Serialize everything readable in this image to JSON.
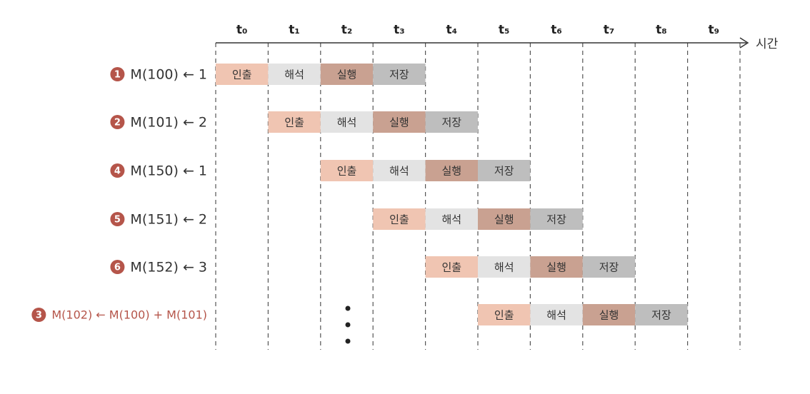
{
  "time_labels": [
    "t₀",
    "t₁",
    "t₂",
    "t₃",
    "t₄",
    "t₅",
    "t₆",
    "t₇",
    "t₈",
    "t₉"
  ],
  "axis_label": "시간",
  "stages": [
    "인출",
    "해석",
    "실행",
    "저장"
  ],
  "rows": [
    {
      "badge": "1",
      "label": "M(100) ← 1"
    },
    {
      "badge": "2",
      "label": "M(101) ← 2"
    },
    {
      "badge": "4",
      "label": "M(150) ← 1"
    },
    {
      "badge": "5",
      "label": "M(151) ← 2"
    },
    {
      "badge": "6",
      "label": "M(152) ← 3"
    },
    {
      "badge": "3",
      "label": "M(102) ← M(100) + M(101)"
    }
  ]
}
